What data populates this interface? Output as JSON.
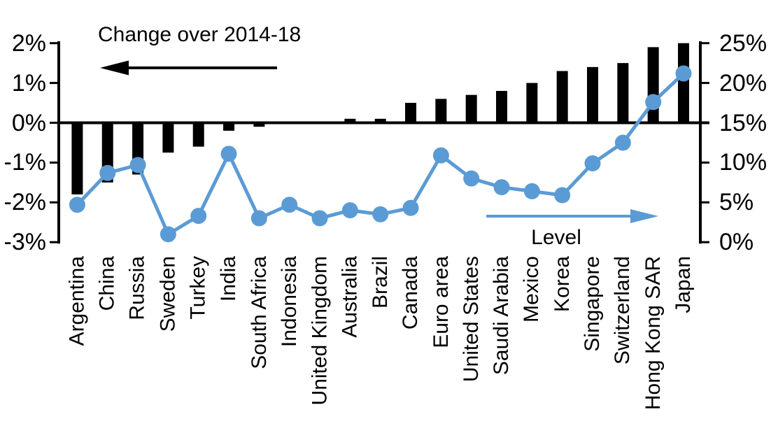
{
  "chart_data": {
    "type": "bar-line-combo",
    "title": "Change over 2014-18",
    "categories": [
      "Argentina",
      "China",
      "Russia",
      "Sweden",
      "Turkey",
      "India",
      "South Africa",
      "Indonesia",
      "United Kingdom",
      "Australia",
      "Brazil",
      "Canada",
      "Euro area",
      "United States",
      "Saudi Arabia",
      "Mexico",
      "Korea",
      "Singapore",
      "Switzerland",
      "Hong Kong SAR",
      "Japan"
    ],
    "series": [
      {
        "name": "Change over 2014-18",
        "type": "bar",
        "axis": "left",
        "unit": "%",
        "values": [
          -1.8,
          -1.5,
          -1.3,
          -0.75,
          -0.6,
          -0.2,
          -0.1,
          0,
          0,
          0.1,
          0.1,
          0.5,
          0.6,
          0.7,
          0.8,
          1.0,
          1.3,
          1.4,
          1.5,
          1.9,
          2.0
        ]
      },
      {
        "name": "Level",
        "type": "line",
        "axis": "right",
        "unit": "%",
        "values": [
          4.7,
          8.7,
          9.7,
          1.0,
          3.3,
          11.1,
          3.0,
          4.7,
          3.0,
          4.0,
          3.5,
          4.3,
          10.9,
          8.0,
          6.9,
          6.4,
          5.9,
          9.9,
          12.5,
          17.6,
          21.2
        ]
      }
    ],
    "left_axis": {
      "min": -3,
      "max": 2,
      "tick_values": [
        2,
        1,
        0,
        -1,
        -2,
        -3
      ],
      "tick_labels": [
        "2%",
        "1%",
        "0%",
        "-1%",
        "-2%",
        "-3%"
      ]
    },
    "right_axis": {
      "min": 0,
      "max": 25,
      "tick_values": [
        25,
        20,
        15,
        10,
        5,
        0
      ],
      "tick_labels": [
        "25%",
        "20%",
        "15%",
        "10%",
        "5%",
        "0%"
      ]
    },
    "annotations": {
      "change": {
        "text": "Change over 2014-18",
        "arrow_direction": "left",
        "color": "#000000"
      },
      "level": {
        "text": "Level",
        "arrow_direction": "right",
        "color": "#5B9BD5"
      }
    },
    "colors": {
      "bar": "#000000",
      "line": "#5B9BD5",
      "axis": "#000000",
      "background": "#FFFFFF"
    },
    "grid": false,
    "legend_position": "none"
  }
}
